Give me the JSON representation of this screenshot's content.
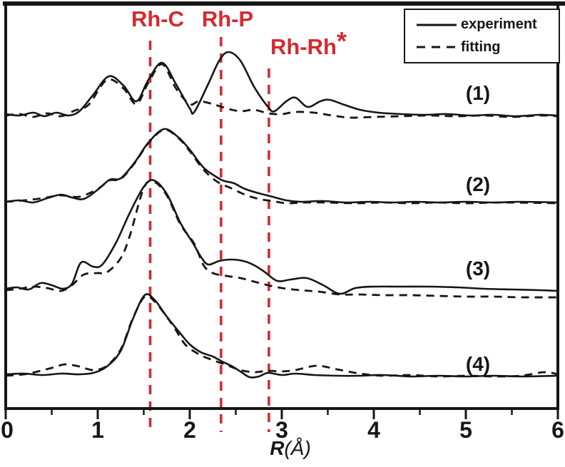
{
  "colors": {
    "accent_red": "#d42a30",
    "curve_black": "#161616"
  },
  "legend": {
    "experiment": "experiment",
    "fitting": "fitting"
  },
  "annotations": {
    "rh_c": "Rh-C",
    "rh_p": "Rh-P",
    "rh_rh": "Rh-Rh",
    "rh_rh_sup": "*"
  },
  "axis": {
    "label_r": "R",
    "label_unit": "(Å)"
  },
  "chart_data": {
    "type": "line",
    "title": "",
    "xlabel": "R(Å)",
    "ylabel": "",
    "xlim": [
      0,
      6
    ],
    "x_major_ticks": [
      0,
      1,
      2,
      3,
      4,
      5,
      6
    ],
    "x_minor_tick_step": 0.5,
    "grid": false,
    "legend_position": "top-right",
    "legend_entries": [
      {
        "label": "experiment",
        "style": "solid"
      },
      {
        "label": "fitting",
        "style": "dashed"
      }
    ],
    "y_units": "FT magnitude, arbitrary units; curves vertically offset for clarity",
    "reference_lines": [
      {
        "label": "Rh-C",
        "R": 1.57
      },
      {
        "label": "Rh-P",
        "R": 2.34
      },
      {
        "label": "Rh-Rh*",
        "R": 2.86
      }
    ],
    "curves": [
      {
        "label": "(1)",
        "offset": 4.13,
        "experiment": [
          [
            0,
            0
          ],
          [
            0.15,
            -0.02
          ],
          [
            0.3,
            0.02
          ],
          [
            0.42,
            -0.03
          ],
          [
            0.55,
            0.02
          ],
          [
            0.68,
            -0.02
          ],
          [
            0.8,
            0.04
          ],
          [
            0.95,
            0.27
          ],
          [
            1.12,
            0.53
          ],
          [
            1.28,
            0.4
          ],
          [
            1.42,
            0.18
          ],
          [
            1.55,
            0.48
          ],
          [
            1.7,
            0.72
          ],
          [
            1.85,
            0.42
          ],
          [
            2.0,
            0.08
          ],
          [
            2.05,
            0.03
          ],
          [
            2.2,
            0.42
          ],
          [
            2.32,
            0.75
          ],
          [
            2.42,
            0.87
          ],
          [
            2.55,
            0.75
          ],
          [
            2.7,
            0.38
          ],
          [
            2.85,
            0.1
          ],
          [
            2.92,
            0.04
          ],
          [
            3.05,
            0.18
          ],
          [
            3.15,
            0.23
          ],
          [
            3.28,
            0.1
          ],
          [
            3.42,
            0.18
          ],
          [
            3.52,
            0.2
          ],
          [
            3.68,
            0.13
          ],
          [
            3.85,
            0.06
          ],
          [
            4.05,
            0.02
          ],
          [
            4.3,
            0
          ],
          [
            4.55,
            -0.01
          ],
          [
            4.8,
            0
          ],
          [
            5.05,
            -0.02
          ],
          [
            5.3,
            -0.01
          ],
          [
            5.55,
            -0.03
          ],
          [
            5.8,
            -0.01
          ],
          [
            6.0,
            -0.02
          ]
        ],
        "fitting": [
          [
            0,
            -0.02
          ],
          [
            0.15,
            0
          ],
          [
            0.3,
            -0.04
          ],
          [
            0.45,
            0.01
          ],
          [
            0.6,
            -0.03
          ],
          [
            0.75,
            0.05
          ],
          [
            0.9,
            0.13
          ],
          [
            1.1,
            0.48
          ],
          [
            1.28,
            0.36
          ],
          [
            1.42,
            0.14
          ],
          [
            1.55,
            0.44
          ],
          [
            1.7,
            0.7
          ],
          [
            1.85,
            0.36
          ],
          [
            2.0,
            0.14
          ],
          [
            2.1,
            0.18
          ],
          [
            2.25,
            0.14
          ],
          [
            2.4,
            0.08
          ],
          [
            2.55,
            0.04
          ],
          [
            2.7,
            0.06
          ],
          [
            2.85,
            0.01
          ],
          [
            3.0,
            0
          ],
          [
            3.15,
            0.03
          ],
          [
            3.35,
            0.02
          ],
          [
            3.55,
            -0.02
          ],
          [
            3.75,
            -0.05
          ],
          [
            4.0,
            -0.04
          ],
          [
            4.3,
            -0.03
          ],
          [
            4.6,
            -0.02
          ],
          [
            4.9,
            -0.03
          ],
          [
            5.2,
            -0.02
          ],
          [
            5.5,
            -0.04
          ],
          [
            5.8,
            -0.02
          ],
          [
            6.0,
            -0.03
          ]
        ]
      },
      {
        "label": "(2)",
        "offset": 2.9,
        "experiment": [
          [
            0,
            0
          ],
          [
            0.15,
            0.02
          ],
          [
            0.3,
            -0.01
          ],
          [
            0.45,
            0.05
          ],
          [
            0.6,
            0.1
          ],
          [
            0.72,
            0.06
          ],
          [
            0.85,
            0.04
          ],
          [
            1.0,
            0.17
          ],
          [
            1.13,
            0.31
          ],
          [
            1.25,
            0.33
          ],
          [
            1.4,
            0.55
          ],
          [
            1.55,
            0.83
          ],
          [
            1.72,
            1.02
          ],
          [
            1.88,
            0.9
          ],
          [
            2.0,
            0.73
          ],
          [
            2.15,
            0.48
          ],
          [
            2.3,
            0.34
          ],
          [
            2.38,
            0.29
          ],
          [
            2.48,
            0.26
          ],
          [
            2.6,
            0.18
          ],
          [
            2.75,
            0.12
          ],
          [
            2.9,
            0.07
          ],
          [
            3.05,
            0.02
          ],
          [
            3.2,
            0
          ],
          [
            3.45,
            0.01
          ],
          [
            3.7,
            -0.01
          ],
          [
            3.95,
            0
          ],
          [
            4.2,
            -0.01
          ],
          [
            4.45,
            0
          ],
          [
            4.7,
            -0.01
          ],
          [
            5.0,
            0
          ],
          [
            5.3,
            -0.01
          ],
          [
            5.6,
            0
          ],
          [
            6.0,
            -0.01
          ]
        ],
        "fitting": [
          [
            0,
            0
          ],
          [
            0.2,
            0.02
          ],
          [
            0.4,
            0.05
          ],
          [
            0.6,
            0.09
          ],
          [
            0.8,
            0.07
          ],
          [
            1.0,
            0.18
          ],
          [
            1.13,
            0.3
          ],
          [
            1.25,
            0.32
          ],
          [
            1.4,
            0.54
          ],
          [
            1.55,
            0.82
          ],
          [
            1.72,
            1.01
          ],
          [
            1.88,
            0.89
          ],
          [
            2.0,
            0.71
          ],
          [
            2.15,
            0.45
          ],
          [
            2.3,
            0.28
          ],
          [
            2.45,
            0.19
          ],
          [
            2.6,
            0.1
          ],
          [
            2.75,
            0.04
          ],
          [
            2.9,
            0.01
          ],
          [
            3.05,
            -0.02
          ],
          [
            3.25,
            -0.01
          ],
          [
            3.5,
            -0.01
          ],
          [
            3.8,
            -0.02
          ],
          [
            4.1,
            -0.01
          ],
          [
            4.4,
            -0.02
          ],
          [
            4.7,
            -0.01
          ],
          [
            5.0,
            -0.02
          ],
          [
            5.4,
            -0.01
          ],
          [
            6.0,
            -0.02
          ]
        ]
      },
      {
        "label": "(3)",
        "offset": 1.68,
        "experiment": [
          [
            0,
            0
          ],
          [
            0.12,
            0.02
          ],
          [
            0.25,
            -0.01
          ],
          [
            0.38,
            0.08
          ],
          [
            0.5,
            0.05
          ],
          [
            0.62,
            0
          ],
          [
            0.72,
            0.07
          ],
          [
            0.82,
            0.37
          ],
          [
            0.95,
            0.31
          ],
          [
            1.05,
            0.34
          ],
          [
            1.2,
            0.65
          ],
          [
            1.35,
            1.07
          ],
          [
            1.5,
            1.43
          ],
          [
            1.61,
            1.52
          ],
          [
            1.75,
            1.33
          ],
          [
            1.9,
            0.92
          ],
          [
            2.03,
            0.65
          ],
          [
            2.12,
            0.45
          ],
          [
            2.2,
            0.34
          ],
          [
            2.32,
            0.39
          ],
          [
            2.45,
            0.41
          ],
          [
            2.58,
            0.39
          ],
          [
            2.7,
            0.33
          ],
          [
            2.82,
            0.23
          ],
          [
            2.95,
            0.11
          ],
          [
            3.1,
            0.13
          ],
          [
            3.27,
            0.15
          ],
          [
            3.45,
            0.05
          ],
          [
            3.63,
            -0.07
          ],
          [
            3.8,
            0.01
          ],
          [
            4.0,
            0.03
          ],
          [
            4.3,
            0.03
          ],
          [
            4.6,
            0.03
          ],
          [
            4.9,
            0.02
          ],
          [
            5.2,
            0
          ],
          [
            5.5,
            -0.01
          ],
          [
            5.8,
            -0.02
          ],
          [
            6.0,
            -0.03
          ]
        ],
        "fitting": [
          [
            0,
            -0.02
          ],
          [
            0.15,
            0
          ],
          [
            0.3,
            0.03
          ],
          [
            0.45,
            0.01
          ],
          [
            0.6,
            -0.03
          ],
          [
            0.72,
            0.05
          ],
          [
            0.85,
            0.2
          ],
          [
            1.0,
            0.22
          ],
          [
            1.1,
            0.23
          ],
          [
            1.25,
            0.43
          ],
          [
            1.35,
            0.75
          ],
          [
            1.5,
            1.41
          ],
          [
            1.61,
            1.5
          ],
          [
            1.75,
            1.31
          ],
          [
            1.9,
            0.9
          ],
          [
            2.05,
            0.63
          ],
          [
            2.15,
            0.33
          ],
          [
            2.25,
            0.22
          ],
          [
            2.4,
            0.18
          ],
          [
            2.55,
            0.15
          ],
          [
            2.7,
            0.1
          ],
          [
            2.85,
            0.05
          ],
          [
            3.0,
            0.01
          ],
          [
            3.2,
            -0.02
          ],
          [
            3.4,
            -0.04
          ],
          [
            3.63,
            -0.08
          ],
          [
            3.85,
            -0.08
          ],
          [
            4.1,
            -0.09
          ],
          [
            4.4,
            -0.09
          ],
          [
            4.7,
            -0.1
          ],
          [
            5.0,
            -0.11
          ],
          [
            5.3,
            -0.11
          ],
          [
            5.6,
            -0.12
          ],
          [
            6.0,
            -0.12
          ]
        ]
      },
      {
        "label": "(4)",
        "offset": 0.48,
        "experiment": [
          [
            0,
            0
          ],
          [
            0.2,
            0.01
          ],
          [
            0.4,
            -0.01
          ],
          [
            0.6,
            0.01
          ],
          [
            0.8,
            0
          ],
          [
            0.95,
            0.02
          ],
          [
            1.1,
            0.11
          ],
          [
            1.25,
            0.33
          ],
          [
            1.38,
            0.77
          ],
          [
            1.51,
            1.11
          ],
          [
            1.62,
            1.04
          ],
          [
            1.75,
            0.81
          ],
          [
            1.9,
            0.57
          ],
          [
            2.0,
            0.42
          ],
          [
            2.12,
            0.31
          ],
          [
            2.25,
            0.25
          ],
          [
            2.35,
            0.18
          ],
          [
            2.45,
            0.12
          ],
          [
            2.55,
            0.04
          ],
          [
            2.65,
            -0.04
          ],
          [
            2.75,
            -0.03
          ],
          [
            2.85,
            0.02
          ],
          [
            3.0,
            -0.01
          ],
          [
            3.15,
            0.01
          ],
          [
            3.35,
            -0.01
          ],
          [
            3.6,
            -0.02
          ],
          [
            3.85,
            -0.02
          ],
          [
            4.1,
            -0.01
          ],
          [
            4.4,
            -0.03
          ],
          [
            4.7,
            -0.02
          ],
          [
            5.0,
            -0.03
          ],
          [
            5.3,
            -0.02
          ],
          [
            5.6,
            -0.03
          ],
          [
            6.0,
            -0.02
          ]
        ],
        "fitting": [
          [
            0,
            -0.02
          ],
          [
            0.2,
            0
          ],
          [
            0.35,
            0.04
          ],
          [
            0.5,
            0.09
          ],
          [
            0.65,
            0.14
          ],
          [
            0.8,
            0.11
          ],
          [
            0.95,
            0.06
          ],
          [
            1.1,
            0.12
          ],
          [
            1.25,
            0.35
          ],
          [
            1.38,
            0.78
          ],
          [
            1.51,
            1.09
          ],
          [
            1.62,
            1.02
          ],
          [
            1.73,
            0.84
          ],
          [
            1.83,
            0.66
          ],
          [
            1.95,
            0.42
          ],
          [
            2.1,
            0.28
          ],
          [
            2.25,
            0.2
          ],
          [
            2.4,
            0.13
          ],
          [
            2.55,
            0.06
          ],
          [
            2.7,
            0.03
          ],
          [
            2.85,
            0.05
          ],
          [
            3.0,
            0.04
          ],
          [
            3.15,
            0.06
          ],
          [
            3.38,
            0.12
          ],
          [
            3.6,
            0.07
          ],
          [
            3.85,
            0.01
          ],
          [
            4.1,
            -0.02
          ],
          [
            4.4,
            -0.01
          ],
          [
            4.7,
            -0.03
          ],
          [
            5.0,
            -0.02
          ],
          [
            5.3,
            -0.03
          ],
          [
            5.6,
            -0.02
          ],
          [
            5.85,
            0.03
          ],
          [
            6.0,
            0
          ]
        ]
      }
    ]
  }
}
